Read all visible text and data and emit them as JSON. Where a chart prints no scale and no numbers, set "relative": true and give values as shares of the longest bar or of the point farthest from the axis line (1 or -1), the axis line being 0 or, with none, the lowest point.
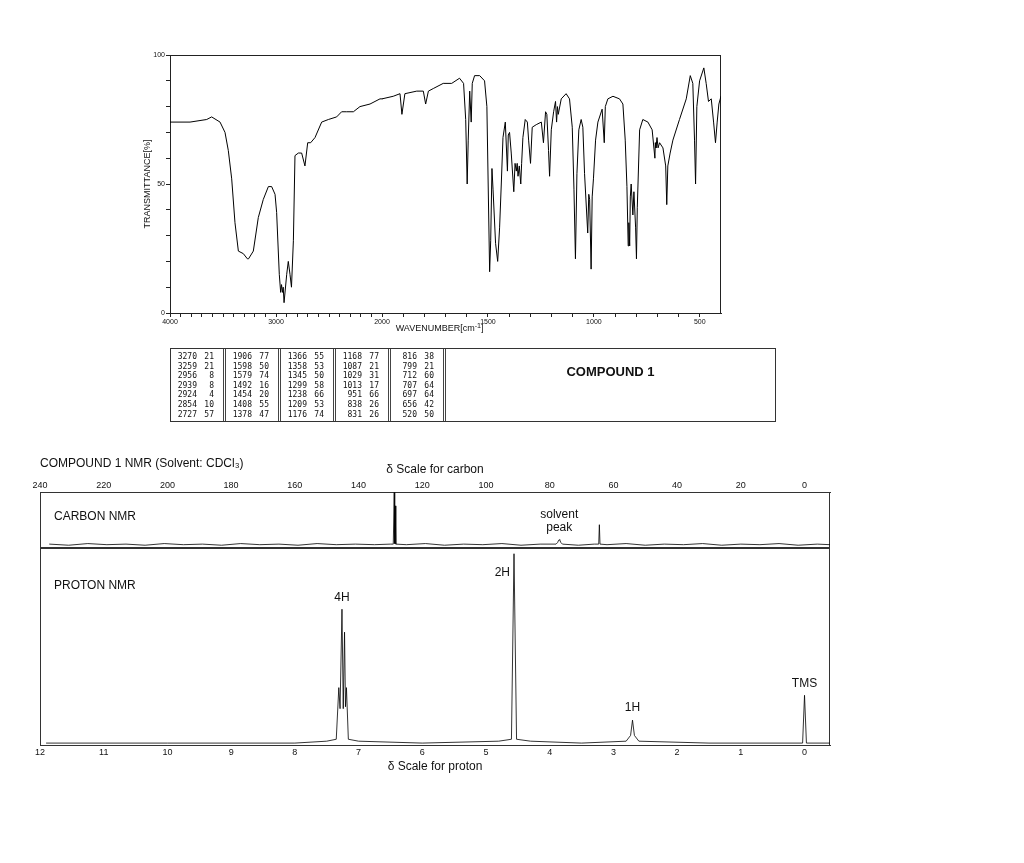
{
  "chart_data": [
    {
      "type": "line",
      "ylabel": "TRANSMITTANCE[%]",
      "color": "#000000",
      "xlim": [
        4000,
        2000
      ],
      "ylim": [
        0,
        100
      ],
      "xticks": [
        4000,
        {
          "value": 3900,
          "label": null
        },
        {
          "value": 3800,
          "label": null
        },
        {
          "value": 3700,
          "label": null
        },
        {
          "value": 3600,
          "label": null
        },
        {
          "value": 3500,
          "label": null
        },
        {
          "value": 3400,
          "label": null
        },
        {
          "value": 3300,
          "label": null
        },
        {
          "value": 3200,
          "label": null
        },
        {
          "value": 3100,
          "label": null
        },
        3000,
        {
          "value": 2900,
          "label": null
        },
        {
          "value": 2800,
          "label": null
        },
        {
          "value": 2700,
          "label": null
        },
        {
          "value": 2600,
          "label": null
        },
        {
          "value": 2500,
          "label": null
        },
        {
          "value": 2400,
          "label": null
        },
        {
          "value": 2300,
          "label": null
        },
        {
          "value": 2200,
          "label": null
        },
        {
          "value": 2100,
          "label": null
        },
        2000
      ],
      "yticks": [
        0,
        {
          "value": 10,
          "label": null
        },
        {
          "value": 20,
          "label": null
        },
        {
          "value": 30,
          "label": null
        },
        {
          "value": 40,
          "label": null
        },
        50,
        {
          "value": 60,
          "label": null
        },
        {
          "value": 70,
          "label": null
        },
        {
          "value": 80,
          "label": null
        },
        {
          "value": 90,
          "label": null
        },
        100
      ],
      "x": [
        4000,
        3811,
        3654,
        3607,
        3528,
        3481,
        3450,
        3418,
        3387,
        3355,
        3308,
        3270,
        3259,
        3214,
        3167,
        3120,
        3072,
        3041,
        3009,
        2994,
        2969,
        2956,
        2948,
        2939,
        2932,
        2924,
        2899,
        2884,
        2868,
        2854,
        2836,
        2821,
        2789,
        2758,
        2727,
        2701,
        2673,
        2632,
        2569,
        2506,
        2428,
        2381,
        2333,
        2270,
        2208,
        2113,
        2019,
        2000
      ],
      "values": [
        74,
        74,
        75,
        76,
        74,
        70,
        63,
        52,
        35,
        24,
        23,
        21,
        21,
        24,
        37,
        44,
        49,
        49,
        46,
        39,
        15,
        8,
        11,
        8,
        10,
        4,
        15,
        20,
        15,
        10,
        28,
        61,
        62,
        62,
        57,
        66,
        66,
        68,
        74,
        75,
        76,
        78,
        78,
        78,
        80,
        81,
        83,
        83
      ]
    },
    {
      "type": "line",
      "xlabel": "WAVENUMBER[cm$^{-1}$]",
      "color": "#000000",
      "xlim": [
        2000,
        400
      ],
      "ylim": [
        0,
        100
      ],
      "tick_labels": "x",
      "xticks": [
        {
          "value": 1900,
          "label": null
        },
        {
          "value": 1800,
          "label": null
        },
        {
          "value": 1700,
          "label": null
        },
        {
          "value": 1600,
          "label": null
        },
        1500,
        {
          "value": 1400,
          "label": null
        },
        {
          "value": 1300,
          "label": null
        },
        {
          "value": 1200,
          "label": null
        },
        {
          "value": 1100,
          "label": null
        },
        1000,
        {
          "value": 900,
          "label": null
        },
        {
          "value": 800,
          "label": null
        },
        {
          "value": 700,
          "label": null
        },
        {
          "value": 600,
          "label": null
        },
        500
      ],
      "x": [
        2000,
        1947,
        1915,
        1906,
        1892,
        1836,
        1805,
        1794,
        1781,
        1758,
        1711,
        1671,
        1634,
        1615,
        1605,
        1598,
        1593,
        1586,
        1579,
        1574,
        1563,
        1539,
        1516,
        1505,
        1492,
        1487,
        1481,
        1476,
        1464,
        1454,
        1445,
        1437,
        1429,
        1418,
        1408,
        1404,
        1398,
        1390,
        1378,
        1372,
        1366,
        1362,
        1358,
        1352,
        1345,
        1341,
        1335,
        1324,
        1314,
        1308,
        1299,
        1291,
        1272,
        1248,
        1238,
        1228,
        1222,
        1214,
        1209,
        1201,
        1190,
        1181,
        1176,
        1172,
        1168,
        1154,
        1131,
        1115,
        1102,
        1094,
        1087,
        1080,
        1071,
        1060,
        1052,
        1044,
        1029,
        1024,
        1020,
        1013,
        1008,
        1002,
        992,
        981,
        961,
        951,
        946,
        934,
        910,
        879,
        863,
        852,
        844,
        838,
        835,
        831,
        828,
        824,
        816,
        811,
        803,
        799,
        795,
        784,
        769,
        745,
        725,
        712,
        710,
        707,
        702,
        697,
        690,
        674,
        661,
        656,
        651,
        640,
        627,
        596,
        564,
        545,
        533,
        525,
        520,
        514,
        501,
        481,
        470,
        459,
        446,
        435,
        426,
        418,
        410,
        400
      ],
      "values": [
        83,
        84,
        85,
        77,
        85,
        86,
        86,
        81,
        86,
        87,
        89,
        89,
        91,
        89,
        75,
        50,
        67,
        86,
        74,
        89,
        92,
        92,
        90,
        80,
        16,
        28,
        56,
        48,
        27,
        20,
        33,
        50,
        68,
        74,
        55,
        69,
        70,
        62,
        47,
        58,
        55,
        58,
        53,
        57,
        50,
        58,
        68,
        75,
        74,
        67,
        58,
        72,
        73,
        74,
        66,
        78,
        77,
        63,
        53,
        71,
        78,
        82,
        74,
        80,
        77,
        83,
        85,
        83,
        72,
        48,
        21,
        54,
        71,
        75,
        72,
        54,
        31,
        46,
        44,
        17,
        45,
        52,
        67,
        74,
        79,
        66,
        80,
        83,
        84,
        83,
        81,
        67,
        49,
        26,
        35,
        26,
        45,
        50,
        38,
        47,
        33,
        21,
        41,
        71,
        75,
        74,
        71,
        60,
        66,
        64,
        68,
        64,
        66,
        64,
        57,
        42,
        57,
        62,
        67,
        75,
        83,
        92,
        89,
        67,
        50,
        80,
        90,
        95,
        89,
        82,
        83,
        74,
        66,
        74,
        81,
        84
      ]
    },
    {
      "type": "other",
      "title": "COMPOUND 1",
      "data_labels": true,
      "categories": [
        "3270",
        "3259",
        "2956",
        "2939",
        "2924",
        "2854",
        "2727",
        "1906",
        "1598",
        "1579",
        "1492",
        "1454",
        "1408",
        "1378",
        "1366",
        "1358",
        "1345",
        "1299",
        "1238",
        "1209",
        "1176",
        "1168",
        "1087",
        "1029",
        "1013",
        "951",
        "838",
        "831",
        "816",
        "799",
        "712",
        "707",
        "697",
        "656",
        "520"
      ],
      "values": [
        21,
        21,
        8,
        8,
        4,
        10,
        57,
        77,
        50,
        74,
        16,
        20,
        55,
        47,
        55,
        53,
        50,
        58,
        66,
        53,
        74,
        77,
        21,
        31,
        17,
        66,
        26,
        26,
        38,
        21,
        60,
        64,
        64,
        42,
        50
      ]
    },
    {
      "type": "line",
      "title": "COMPOUND 1 NMR (Solvent: CDCl₃)",
      "xlabel": "δ Scale for carbon",
      "relative": true,
      "color": "#000000",
      "xlim": [
        240,
        -8
      ],
      "xticks": [
        240,
        220,
        200,
        180,
        160,
        140,
        120,
        100,
        80,
        60,
        40,
        20,
        0
      ],
      "x": [
        237,
        231,
        225,
        219,
        213,
        207,
        201,
        195,
        189,
        183,
        177,
        171,
        165,
        159,
        153,
        147,
        141,
        135,
        130,
        129.1,
        128.8,
        128.65,
        128.5,
        128.3,
        125,
        119,
        113,
        107,
        101,
        95,
        89,
        83,
        78,
        77.5,
        77.2,
        77,
        76.8,
        76.5,
        76,
        71,
        66,
        64.6,
        64.4,
        64.2,
        62,
        56,
        50,
        44,
        38,
        32,
        26,
        20,
        14,
        8,
        2,
        -4,
        -8
      ],
      "values": [
        0.07,
        0.05,
        0.08,
        0.06,
        0.07,
        0.05,
        0.08,
        0.06,
        0.07,
        0.05,
        0.08,
        0.06,
        0.07,
        0.05,
        0.08,
        0.06,
        0.07,
        0.06,
        0.07,
        0.07,
        1,
        0.08,
        0.76,
        0.07,
        0.06,
        0.08,
        0.05,
        0.07,
        0.06,
        0.08,
        0.05,
        0.07,
        0.07,
        0.1,
        0.14,
        0.15,
        0.14,
        0.1,
        0.07,
        0.05,
        0.07,
        0.07,
        0.42,
        0.07,
        0.06,
        0.08,
        0.05,
        0.07,
        0.06,
        0.08,
        0.05,
        0.07,
        0.06,
        0.08,
        0.05,
        0.07,
        0.06
      ],
      "annotations": [
        "CARBON NMR",
        {
          "text": "solvent peak",
          "x": 77,
          "y": 0.15
        }
      ]
    },
    {
      "type": "line",
      "xlabel": "δ Scale for proton",
      "relative": true,
      "color": "#000000",
      "xlim": [
        12,
        -0.4
      ],
      "xticks": [
        12,
        11,
        10,
        9,
        8,
        7,
        6,
        5,
        4,
        3,
        2,
        1,
        0
      ],
      "x": [
        11.9,
        10,
        8,
        7.5,
        7.35,
        7.31,
        7.29,
        7.26,
        7.24,
        7.22,
        7.205,
        7.19,
        7.16,
        7,
        6,
        4.8,
        4.6,
        4.56,
        4.52,
        4.3,
        3.5,
        2.8,
        2.73,
        2.7,
        2.67,
        2.6,
        1.5,
        0.03,
        0,
        -0.03,
        -0.4
      ],
      "values": [
        0.01,
        0.01,
        0.01,
        0.02,
        0.03,
        0.3,
        0.19,
        0.71,
        0.19,
        0.59,
        0.2,
        0.3,
        0.03,
        0.02,
        0.01,
        0.02,
        0.03,
        1,
        0.03,
        0.02,
        0.01,
        0.02,
        0.05,
        0.13,
        0.05,
        0.02,
        0.01,
        0.01,
        0.26,
        0.01,
        0.01
      ],
      "annotations": [
        "PROTON NMR",
        {
          "text": "4H",
          "x": 7.26,
          "y": 0.71
        },
        {
          "text": "2H",
          "x": 4.56,
          "y": 1
        },
        {
          "text": "1H",
          "x": 2.7,
          "y": 0.13
        },
        {
          "text": "TMS",
          "x": 0,
          "y": 0.26
        }
      ]
    }
  ]
}
